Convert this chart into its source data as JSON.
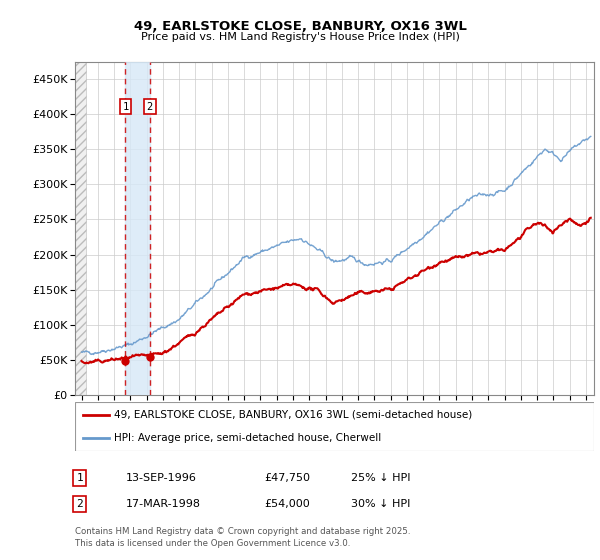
{
  "title": "49, EARLSTOKE CLOSE, BANBURY, OX16 3WL",
  "subtitle": "Price paid vs. HM Land Registry's House Price Index (HPI)",
  "ylabel_ticks": [
    "£0",
    "£50K",
    "£100K",
    "£150K",
    "£200K",
    "£250K",
    "£300K",
    "£350K",
    "£400K",
    "£450K"
  ],
  "ytick_vals": [
    0,
    50000,
    100000,
    150000,
    200000,
    250000,
    300000,
    350000,
    400000,
    450000
  ],
  "ylim": [
    0,
    475000
  ],
  "xlim_start": 1993.6,
  "xlim_end": 2025.5,
  "sale1_date": 1996.7,
  "sale1_price": 47750,
  "sale1_label": "1",
  "sale2_date": 1998.2,
  "sale2_price": 54000,
  "sale2_label": "2",
  "red_line_color": "#cc0000",
  "blue_line_color": "#6699cc",
  "blue_shade_color": "#d6e8f7",
  "grid_color": "#cccccc",
  "legend_label_red": "49, EARLSTOKE CLOSE, BANBURY, OX16 3WL (semi-detached house)",
  "legend_label_blue": "HPI: Average price, semi-detached house, Cherwell",
  "table_row1": [
    "1",
    "13-SEP-1996",
    "£47,750",
    "25% ↓ HPI"
  ],
  "table_row2": [
    "2",
    "17-MAR-1998",
    "£54,000",
    "30% ↓ HPI"
  ],
  "footnote": "Contains HM Land Registry data © Crown copyright and database right 2025.\nThis data is licensed under the Open Government Licence v3.0.",
  "background_color": "#ffffff"
}
